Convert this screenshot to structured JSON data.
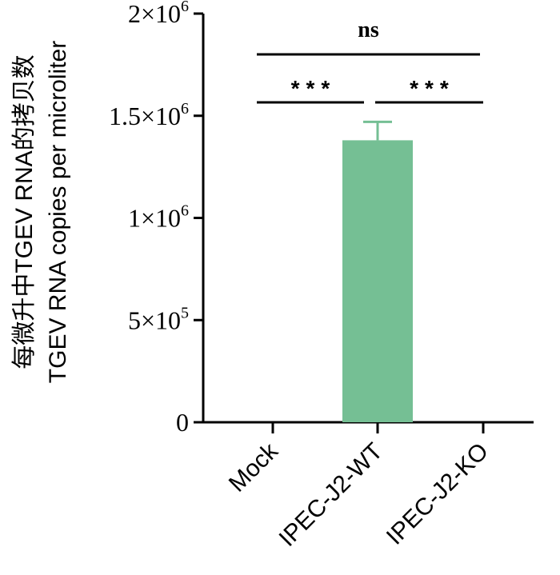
{
  "chart_data": {
    "type": "bar",
    "ylabel_line1": "每微升中TGEV RNA的拷贝数",
    "ylabel_line2": "TGEV RNA copies per microliter",
    "ylim": [
      0,
      2000000
    ],
    "yticks": [
      {
        "value": 0,
        "mantissa": "0",
        "exponent": ""
      },
      {
        "value": 500000,
        "mantissa": "5×10",
        "exponent": "5"
      },
      {
        "value": 1000000,
        "mantissa": "1×10",
        "exponent": "6"
      },
      {
        "value": 1500000,
        "mantissa": "1.5×10",
        "exponent": "6"
      },
      {
        "value": 2000000,
        "mantissa": "2×10",
        "exponent": "6"
      }
    ],
    "categories": [
      "Mock",
      "IPEC-J2-WT",
      "IPEC-J2-KO"
    ],
    "values": [
      0,
      1380000,
      0
    ],
    "errors": [
      0,
      90000,
      0
    ],
    "bar_color": "#75bf94",
    "significance": [
      {
        "from": 0,
        "to": 1,
        "label": "***"
      },
      {
        "from": 1,
        "to": 2,
        "label": "***"
      },
      {
        "from": 0,
        "to": 2,
        "label": "ns"
      }
    ]
  }
}
